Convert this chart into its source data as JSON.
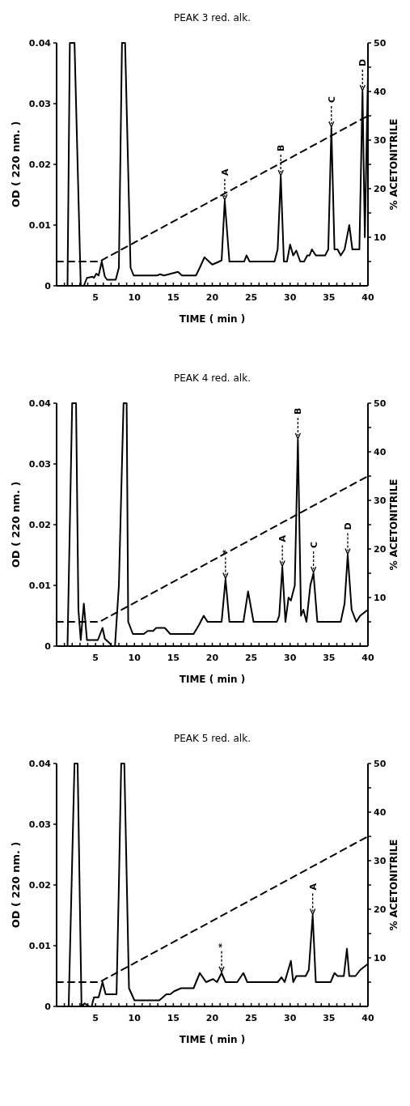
{
  "chart_data": [
    {
      "type": "line",
      "title": "PEAK 3 red. alk.",
      "xlabel": "TIME ( min )",
      "ylabel": "OD ( 220 nm. )",
      "y2label": "% ACETONITRILE",
      "xlim": [
        0,
        40
      ],
      "xticks": [
        {
          "value": 1,
          "label": null
        },
        {
          "value": 2,
          "label": null
        },
        {
          "value": 3,
          "label": null
        },
        {
          "value": 4,
          "label": null
        },
        5,
        {
          "value": 6,
          "label": null
        },
        {
          "value": 7,
          "label": null
        },
        {
          "value": 8,
          "label": null
        },
        {
          "value": 9,
          "label": null
        },
        10,
        {
          "value": 11,
          "label": null
        },
        {
          "value": 12,
          "label": null
        },
        {
          "value": 13,
          "label": null
        },
        {
          "value": 14,
          "label": null
        },
        15,
        {
          "value": 16,
          "label": null
        },
        {
          "value": 17,
          "label": null
        },
        {
          "value": 18,
          "label": null
        },
        {
          "value": 19,
          "label": null
        },
        20,
        {
          "value": 21,
          "label": null
        },
        {
          "value": 22,
          "label": null
        },
        {
          "value": 23,
          "label": null
        },
        {
          "value": 24,
          "label": null
        },
        25,
        {
          "value": 26,
          "label": null
        },
        {
          "value": 27,
          "label": null
        },
        {
          "value": 28,
          "label": null
        },
        {
          "value": 29,
          "label": null
        },
        30,
        {
          "value": 31,
          "label": null
        },
        {
          "value": 32,
          "label": null
        },
        {
          "value": 33,
          "label": null
        },
        {
          "value": 34,
          "label": null
        },
        35,
        {
          "value": 36,
          "label": null
        },
        {
          "value": 37,
          "label": null
        },
        {
          "value": 38,
          "label": null
        },
        {
          "value": 39,
          "label": null
        },
        40
      ],
      "ylim": [
        0,
        0.04
      ],
      "yticks": [
        0,
        0.01,
        0.02,
        0.03,
        0.04
      ],
      "y2lim": [
        0,
        50
      ],
      "y2ticks": [
        {
          "value": 5,
          "label": null
        },
        10,
        {
          "value": 15,
          "label": null
        },
        20,
        {
          "value": 25,
          "label": null
        },
        30,
        {
          "value": 35,
          "label": null
        },
        40,
        {
          "value": 45,
          "label": null
        },
        50
      ],
      "series": [
        {
          "color": "#000000",
          "line_style": "solid",
          "x": [
            1.4,
            1.7,
            2.3,
            3.1,
            3.5,
            3.9,
            4.6,
            4.8,
            5.1,
            5.4,
            5.8,
            6.2,
            6.5,
            7.6,
            8.0,
            8.4,
            8.8,
            9.5,
            9.9,
            12.9,
            13.3,
            13.8,
            15.6,
            16.1,
            17.9,
            18.4,
            19.0,
            20.0,
            20.9,
            21.2,
            21.6,
            22.2,
            24.1,
            24.4,
            24.8,
            28.0,
            28.4,
            28.8,
            29.2,
            29.6,
            30.0,
            30.4,
            30.8,
            31.3,
            31.8,
            32.2,
            32.5,
            32.8,
            33.3,
            34.5,
            34.9,
            35.3,
            35.7,
            36.1,
            36.5,
            37.0,
            37.6,
            38.0,
            38.9,
            39.3,
            39.6,
            40
          ],
          "values": [
            0,
            0.04,
            0.04,
            0,
            0,
            0.0013,
            0.0015,
            0.0013,
            0.002,
            0.0017,
            0.004,
            0.0015,
            0.001,
            0.001,
            0.003,
            0.04,
            0.04,
            0.003,
            0.0017,
            0.0017,
            0.0019,
            0.0017,
            0.0023,
            0.0017,
            0.0017,
            0.003,
            0.0047,
            0.0035,
            0.004,
            0.0042,
            0.014,
            0.004,
            0.004,
            0.005,
            0.004,
            0.004,
            0.006,
            0.018,
            0.004,
            0.004,
            0.0068,
            0.005,
            0.0058,
            0.004,
            0.004,
            0.005,
            0.005,
            0.006,
            0.005,
            0.005,
            0.006,
            0.026,
            0.006,
            0.006,
            0.005,
            0.006,
            0.01,
            0.006,
            0.006,
            0.032,
            0.008,
            0.035
          ]
        },
        {
          "axis": "y2",
          "color": "#000000",
          "line_style": "dashed",
          "x": [
            0,
            5.5,
            40
          ],
          "values": [
            5,
            5,
            35
          ]
        }
      ],
      "annotations": [
        {
          "text": "A",
          "x": 21.6,
          "y": 0.014
        },
        {
          "text": "B",
          "x": 28.8,
          "y": 0.018
        },
        {
          "text": "C",
          "x": 35.3,
          "y": 0.026
        },
        {
          "text": "D",
          "x": 39.3,
          "y": 0.032
        }
      ]
    },
    {
      "type": "line",
      "title": "PEAK 4 red. alk.",
      "xlabel": "TIME ( min )",
      "ylabel": "OD ( 220 nm. )",
      "y2label": "% ACETONITRILE",
      "xlim": [
        0,
        40
      ],
      "xticks": [
        {
          "value": 1,
          "label": null
        },
        {
          "value": 2,
          "label": null
        },
        {
          "value": 3,
          "label": null
        },
        {
          "value": 4,
          "label": null
        },
        5,
        {
          "value": 6,
          "label": null
        },
        {
          "value": 7,
          "label": null
        },
        {
          "value": 8,
          "label": null
        },
        {
          "value": 9,
          "label": null
        },
        10,
        {
          "value": 11,
          "label": null
        },
        {
          "value": 12,
          "label": null
        },
        {
          "value": 13,
          "label": null
        },
        {
          "value": 14,
          "label": null
        },
        15,
        {
          "value": 16,
          "label": null
        },
        {
          "value": 17,
          "label": null
        },
        {
          "value": 18,
          "label": null
        },
        {
          "value": 19,
          "label": null
        },
        20,
        {
          "value": 21,
          "label": null
        },
        {
          "value": 22,
          "label": null
        },
        {
          "value": 23,
          "label": null
        },
        {
          "value": 24,
          "label": null
        },
        25,
        {
          "value": 26,
          "label": null
        },
        {
          "value": 27,
          "label": null
        },
        {
          "value": 28,
          "label": null
        },
        {
          "value": 29,
          "label": null
        },
        30,
        {
          "value": 31,
          "label": null
        },
        {
          "value": 32,
          "label": null
        },
        {
          "value": 33,
          "label": null
        },
        {
          "value": 34,
          "label": null
        },
        35,
        {
          "value": 36,
          "label": null
        },
        {
          "value": 37,
          "label": null
        },
        {
          "value": 38,
          "label": null
        },
        {
          "value": 39,
          "label": null
        },
        40
      ],
      "ylim": [
        0,
        0.04
      ],
      "yticks": [
        0,
        0.01,
        0.02,
        0.03,
        0.04
      ],
      "y2lim": [
        0,
        50
      ],
      "y2ticks": [
        {
          "value": 5,
          "label": null
        },
        10,
        {
          "value": 15,
          "label": null
        },
        20,
        {
          "value": 25,
          "label": null
        },
        30,
        {
          "value": 35,
          "label": null
        },
        40,
        {
          "value": 45,
          "label": null
        },
        50
      ],
      "series": [
        {
          "color": "#000000",
          "line_style": "solid",
          "x": [
            1.4,
            2.0,
            2.5,
            2.8,
            3.1,
            3.5,
            3.9,
            5.3,
            5.9,
            6.2,
            6.8,
            7.1,
            7.5,
            8.0,
            8.6,
            9.0,
            9.2,
            9.8,
            11.2,
            11.7,
            12.4,
            12.8,
            13.9,
            14.6,
            17.6,
            18.3,
            18.9,
            19.4,
            21.2,
            21.7,
            22.2,
            24.0,
            24.6,
            25.3,
            28.3,
            28.6,
            29.0,
            29.4,
            29.8,
            30.1,
            30.4,
            30.6,
            31.0,
            31.4,
            31.7,
            32.1,
            32.6,
            33.0,
            33.5,
            36.5,
            37.0,
            37.4,
            37.9,
            38.5,
            39.0,
            39.5,
            40
          ],
          "values": [
            0,
            0.04,
            0.04,
            0.006,
            0.001,
            0.007,
            0.001,
            0.001,
            0.003,
            0.0012,
            0.0005,
            0,
            0,
            0.01,
            0.04,
            0.04,
            0.004,
            0.002,
            0.002,
            0.0025,
            0.0025,
            0.003,
            0.003,
            0.002,
            0.002,
            0.0035,
            0.005,
            0.004,
            0.004,
            0.011,
            0.004,
            0.004,
            0.009,
            0.004,
            0.004,
            0.005,
            0.013,
            0.004,
            0.008,
            0.0075,
            0.009,
            0.01,
            0.034,
            0.005,
            0.006,
            0.004,
            0.01,
            0.012,
            0.004,
            0.004,
            0.007,
            0.015,
            0.006,
            0.004,
            0.005,
            0.0055,
            0.006
          ]
        },
        {
          "axis": "y2",
          "color": "#000000",
          "line_style": "dashed",
          "x": [
            0,
            5.5,
            40
          ],
          "values": [
            5,
            5,
            35
          ]
        }
      ],
      "annotations": [
        {
          "text": "*",
          "x": 21.7,
          "y": 0.011
        },
        {
          "text": "A",
          "x": 29.0,
          "y": 0.013
        },
        {
          "text": "B",
          "x": 31.0,
          "y": 0.034
        },
        {
          "text": "C",
          "x": 33.0,
          "y": 0.012
        },
        {
          "text": "D",
          "x": 37.4,
          "y": 0.015
        }
      ]
    },
    {
      "type": "line",
      "title": "PEAK 5 red. alk.",
      "xlabel": "TIME ( min )",
      "ylabel": "OD ( 220 nm. )",
      "y2label": "% ACETONITRILE",
      "xlim": [
        0,
        40
      ],
      "xticks": [
        {
          "value": 1,
          "label": null
        },
        {
          "value": 2,
          "label": null
        },
        {
          "value": 3,
          "label": null
        },
        {
          "value": 4,
          "label": null
        },
        5,
        {
          "value": 6,
          "label": null
        },
        {
          "value": 7,
          "label": null
        },
        {
          "value": 8,
          "label": null
        },
        {
          "value": 9,
          "label": null
        },
        10,
        {
          "value": 11,
          "label": null
        },
        {
          "value": 12,
          "label": null
        },
        {
          "value": 13,
          "label": null
        },
        {
          "value": 14,
          "label": null
        },
        15,
        {
          "value": 16,
          "label": null
        },
        {
          "value": 17,
          "label": null
        },
        {
          "value": 18,
          "label": null
        },
        {
          "value": 19,
          "label": null
        },
        20,
        {
          "value": 21,
          "label": null
        },
        {
          "value": 22,
          "label": null
        },
        {
          "value": 23,
          "label": null
        },
        {
          "value": 24,
          "label": null
        },
        25,
        {
          "value": 26,
          "label": null
        },
        {
          "value": 27,
          "label": null
        },
        {
          "value": 28,
          "label": null
        },
        {
          "value": 29,
          "label": null
        },
        30,
        {
          "value": 31,
          "label": null
        },
        {
          "value": 32,
          "label": null
        },
        {
          "value": 33,
          "label": null
        },
        {
          "value": 34,
          "label": null
        },
        35,
        {
          "value": 36,
          "label": null
        },
        {
          "value": 37,
          "label": null
        },
        {
          "value": 38,
          "label": null
        },
        {
          "value": 39,
          "label": null
        },
        40
      ],
      "ylim": [
        0,
        0.04
      ],
      "yticks": [
        0,
        0.01,
        0.02,
        0.03,
        0.04
      ],
      "y2lim": [
        0,
        50
      ],
      "y2ticks": [
        {
          "value": 5,
          "label": null
        },
        10,
        {
          "value": 15,
          "label": null
        },
        20,
        {
          "value": 25,
          "label": null
        },
        30,
        {
          "value": 35,
          "label": null
        },
        40,
        {
          "value": 45,
          "label": null
        },
        50
      ],
      "series": [
        {
          "color": "#000000",
          "line_style": "solid",
          "x": [
            1.55,
            2.3,
            2.7,
            3.2,
            3.6,
            4.2,
            4.5,
            4.8,
            5.4,
            5.9,
            6.3,
            7.7,
            8.0,
            8.3,
            8.7,
            9.3,
            10.0,
            13.2,
            14.1,
            14.6,
            15.1,
            16.0,
            17.6,
            18.4,
            19.2,
            20.1,
            20.6,
            21.2,
            21.7,
            23.2,
            24.0,
            24.5,
            28.4,
            28.9,
            29.3,
            30.1,
            30.4,
            30.8,
            32.0,
            32.4,
            32.9,
            33.3,
            35.2,
            35.7,
            36.1,
            36.9,
            37.3,
            37.6,
            38.4,
            39.0,
            40
          ],
          "values": [
            0,
            0.04,
            0.04,
            0,
            0.0005,
            0,
            0,
            0.0015,
            0.0015,
            0.004,
            0.002,
            0.002,
            0.02,
            0.04,
            0.04,
            0.003,
            0.001,
            0.001,
            0.002,
            0.002,
            0.0025,
            0.003,
            0.003,
            0.0055,
            0.004,
            0.0045,
            0.004,
            0.0055,
            0.004,
            0.004,
            0.0055,
            0.004,
            0.004,
            0.0048,
            0.004,
            0.0075,
            0.004,
            0.005,
            0.005,
            0.006,
            0.015,
            0.004,
            0.004,
            0.0055,
            0.005,
            0.005,
            0.0095,
            0.005,
            0.005,
            0.006,
            0.007
          ]
        },
        {
          "axis": "y2",
          "color": "#000000",
          "line_style": "dashed",
          "x": [
            0,
            5.5,
            40
          ],
          "values": [
            5,
            5,
            35
          ]
        }
      ],
      "annotations": [
        {
          "text": "*",
          "x": 21.2,
          "y": 0.0055
        },
        {
          "text": "A",
          "x": 32.9,
          "y": 0.015
        }
      ]
    }
  ]
}
